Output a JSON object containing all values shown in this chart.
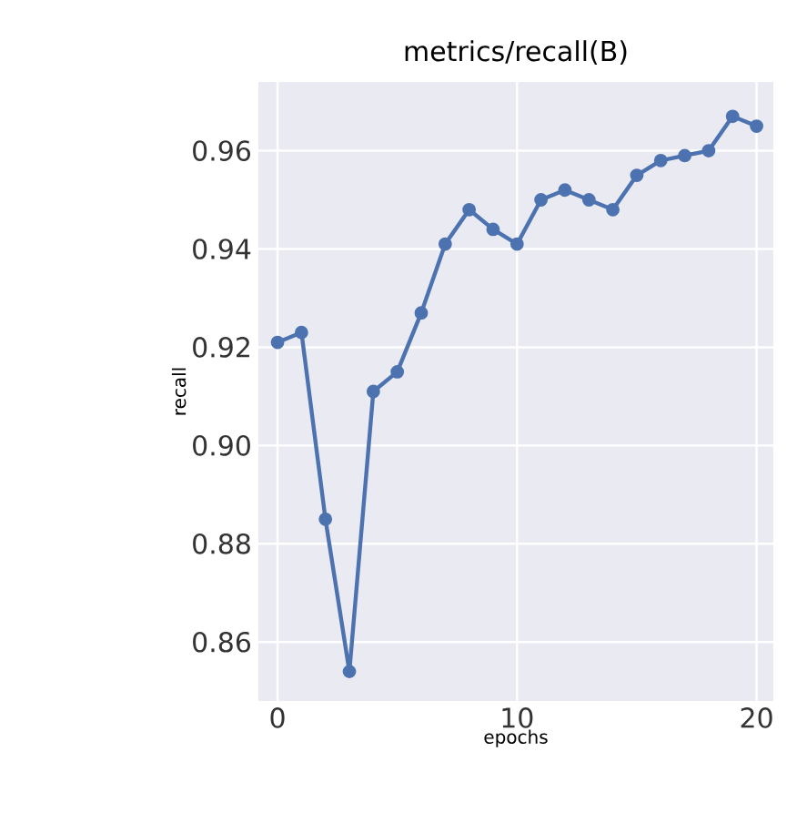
{
  "chart_data": {
    "type": "line",
    "title": "metrics/recall(B)",
    "xlabel": "epochs",
    "ylabel": "recall",
    "x": [
      0,
      1,
      2,
      3,
      4,
      5,
      6,
      7,
      8,
      9,
      10,
      11,
      12,
      13,
      14,
      15,
      16,
      17,
      18,
      19,
      20
    ],
    "series": [
      {
        "color": "#4c72b0",
        "values": [
          0.921,
          0.923,
          0.885,
          0.854,
          0.911,
          0.915,
          0.927,
          0.941,
          0.948,
          0.944,
          0.941,
          0.95,
          0.952,
          0.95,
          0.948,
          0.955,
          0.958,
          0.959,
          0.96,
          0.967,
          0.965
        ]
      }
    ],
    "xlim": [
      -0.8,
      20.7
    ],
    "ylim": [
      0.848,
      0.974
    ],
    "xticks": [
      0,
      10,
      20
    ],
    "yticks": [
      {
        "value": 0.86,
        "label": "0.86"
      },
      {
        "value": 0.88,
        "label": "0.88"
      },
      {
        "value": 0.9,
        "label": "0.90"
      },
      {
        "value": 0.92,
        "label": "0.92"
      },
      {
        "value": 0.94,
        "label": "0.94"
      },
      {
        "value": 0.96,
        "label": "0.96"
      }
    ],
    "grid": true,
    "marker": "circle",
    "line_style": "solid"
  }
}
